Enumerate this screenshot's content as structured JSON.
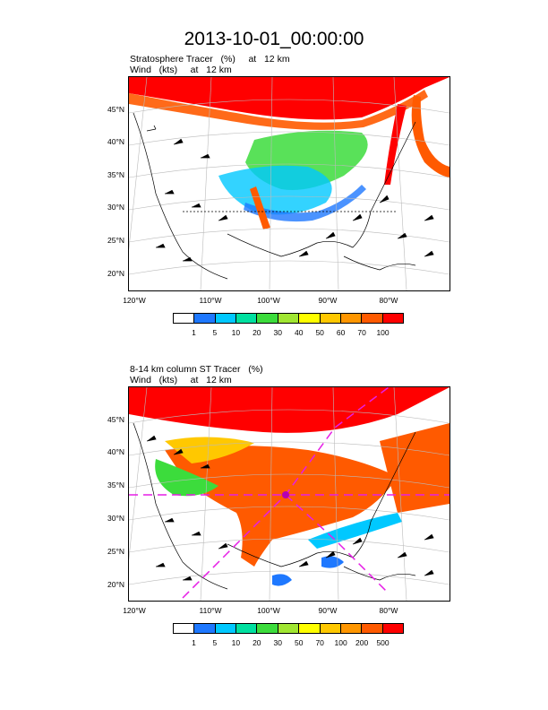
{
  "page_title": "2013-10-01_00:00:00",
  "panels": [
    {
      "subtitle_line1": "Stratosphere Tracer   (%)     at   12 km",
      "subtitle_line2": "Wind   (kts)     at   12 km",
      "lat_labels": [
        "45°N",
        "40°N",
        "35°N",
        "30°N",
        "25°N",
        "20°N"
      ],
      "lon_labels": [
        "120°W",
        "110°W",
        "100°W",
        "90°W",
        "80°W"
      ],
      "colorbar_labels": [
        "1",
        "5",
        "10",
        "20",
        "30",
        "40",
        "50",
        "60",
        "70",
        "100"
      ],
      "colorbar_colors": [
        "#ffffff",
        "#1e78ff",
        "#00c8ff",
        "#00e0a0",
        "#3cdc3c",
        "#a0e632",
        "#ffff00",
        "#ffc800",
        "#ff9600",
        "#ff5a00",
        "#ff0000"
      ]
    },
    {
      "subtitle_line1": "8-14 km column ST Tracer   (%)",
      "subtitle_line2": "Wind   (kts)     at   12 km",
      "lat_labels": [
        "45°N",
        "40°N",
        "35°N",
        "30°N",
        "25°N",
        "20°N"
      ],
      "lon_labels": [
        "120°W",
        "110°W",
        "100°W",
        "90°W",
        "80°W"
      ],
      "colorbar_labels": [
        "1",
        "5",
        "10",
        "20",
        "30",
        "50",
        "70",
        "100",
        "200",
        "500"
      ],
      "colorbar_colors": [
        "#ffffff",
        "#1e78ff",
        "#00c8ff",
        "#00e0a0",
        "#3cdc3c",
        "#a0e632",
        "#ffff00",
        "#ffc800",
        "#ff9600",
        "#ff5a00",
        "#ff0000"
      ]
    }
  ]
}
